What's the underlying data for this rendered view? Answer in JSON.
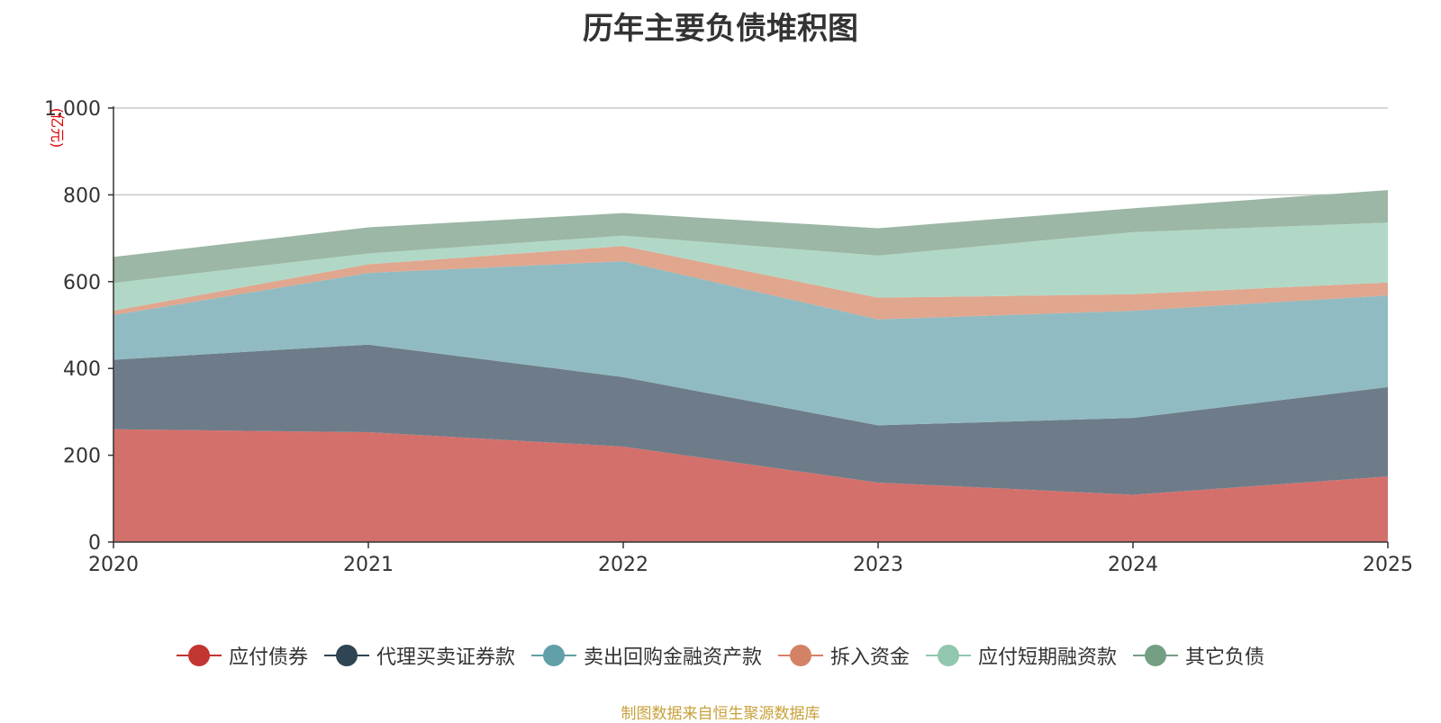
{
  "chart_data": {
    "type": "area",
    "stacked": true,
    "title": "历年主要负债堆积图",
    "ylabel": "(亿元)",
    "xlabel": "",
    "x": [
      "2020",
      "2021",
      "2022",
      "2023",
      "2024",
      "2025"
    ],
    "ylim": [
      0,
      1000
    ],
    "yticks": [
      0,
      200,
      400,
      600,
      800,
      1000
    ],
    "ytick_labels": [
      "0",
      "200",
      "400",
      "600",
      "800",
      "1,000"
    ],
    "grid": true,
    "legend_position": "bottom",
    "series": [
      {
        "name": "应付债券",
        "color": "#c23531",
        "area_color": "#d4706c",
        "values": [
          260,
          253,
          220,
          137,
          109,
          151
        ]
      },
      {
        "name": "代理买卖证券款",
        "color": "#2f4554",
        "area_color": "#6d7c88",
        "values": [
          160,
          202,
          160,
          132,
          177,
          206
        ]
      },
      {
        "name": "卖出回购金融资产款",
        "color": "#61a0a8",
        "area_color": "#91bbc2",
        "values": [
          103,
          165,
          267,
          244,
          247,
          211
        ]
      },
      {
        "name": "拆入资金",
        "color": "#d48265",
        "area_color": "#e0a68e",
        "values": [
          10,
          20,
          35,
          50,
          38,
          30
        ]
      },
      {
        "name": "应付短期融资款",
        "color": "#91c7ae",
        "area_color": "#b1d8c6",
        "values": [
          64,
          25,
          24,
          97,
          143,
          138
        ]
      },
      {
        "name": "其它负债",
        "color": "#749f83",
        "area_color": "#9cb7a5",
        "values": [
          60,
          60,
          52,
          63,
          55,
          75
        ]
      }
    ],
    "source": "制图数据来自恒生聚源数据库"
  }
}
